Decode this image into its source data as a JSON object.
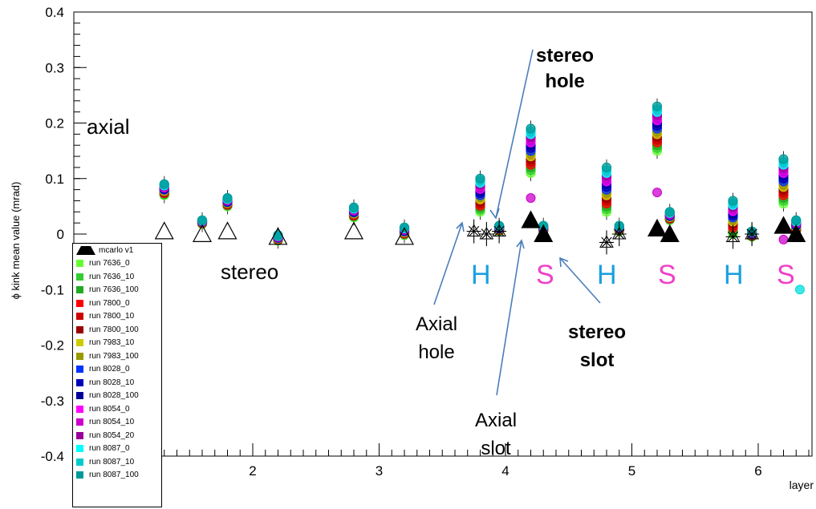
{
  "chart_data": {
    "type": "scatter",
    "title": "",
    "xlabel": "layer",
    "ylabel": "ϕ kink mean value (mrad)",
    "xlim": [
      1,
      6.5
    ],
    "ylim": [
      -0.4,
      0.4
    ],
    "xticks": [
      2,
      3,
      4,
      5,
      6
    ],
    "yticks": [
      -0.4,
      -0.3,
      -0.2,
      -0.1,
      0,
      0.1,
      0.2,
      0.3,
      0.4
    ],
    "grid": false,
    "legend_position": "bottom-left",
    "legend": [
      {
        "name": "mcarlo v1",
        "color": "#000000"
      },
      {
        "name": "run 7636_0",
        "color": "#66ff33"
      },
      {
        "name": "run 7636_10",
        "color": "#33cc33"
      },
      {
        "name": "run 7636_100",
        "color": "#22aa22"
      },
      {
        "name": "run 7800_0",
        "color": "#ff0000"
      },
      {
        "name": "run 7800_10",
        "color": "#cc0000"
      },
      {
        "name": "run 7800_100",
        "color": "#990000"
      },
      {
        "name": "run 7983_10",
        "color": "#cccc00"
      },
      {
        "name": "run 7983_100",
        "color": "#999900"
      },
      {
        "name": "run 8028_0",
        "color": "#0033ff"
      },
      {
        "name": "run 8028_10",
        "color": "#0000bb"
      },
      {
        "name": "run 8028_100",
        "color": "#000099"
      },
      {
        "name": "run 8054_0",
        "color": "#ff00ff"
      },
      {
        "name": "run 8054_10",
        "color": "#cc00cc"
      },
      {
        "name": "run 8054_20",
        "color": "#990099"
      },
      {
        "name": "run 8087_0",
        "color": "#00ffff"
      },
      {
        "name": "run 8087_10",
        "color": "#00cccc"
      },
      {
        "name": "run 8087_100",
        "color": "#009999"
      }
    ],
    "mc_open": [
      {
        "x": 1.3,
        "y": 0.005
      },
      {
        "x": 1.6,
        "y": 0.0
      },
      {
        "x": 1.8,
        "y": 0.005
      },
      {
        "x": 2.2,
        "y": -0.005
      },
      {
        "x": 2.8,
        "y": 0.005
      },
      {
        "x": 3.2,
        "y": -0.005
      }
    ],
    "mc_star": [
      {
        "x": 3.75,
        "y": 0.005
      },
      {
        "x": 3.85,
        "y": 0.0
      },
      {
        "x": 3.95,
        "y": 0.005
      },
      {
        "x": 4.8,
        "y": -0.015
      },
      {
        "x": 4.9,
        "y": 0.0
      },
      {
        "x": 5.8,
        "y": -0.005
      },
      {
        "x": 5.95,
        "y": 0.0
      }
    ],
    "mc_filled": [
      {
        "x": 4.2,
        "y": 0.025
      },
      {
        "x": 4.3,
        "y": 0.0
      },
      {
        "x": 5.2,
        "y": 0.01
      },
      {
        "x": 5.3,
        "y": 0.0
      },
      {
        "x": 6.2,
        "y": 0.015
      },
      {
        "x": 6.3,
        "y": 0.0
      }
    ],
    "data_groups": [
      {
        "x": 1.3,
        "ymin": 0.07,
        "ymax": 0.09
      },
      {
        "x": 1.6,
        "ymin": 0.018,
        "ymax": 0.025
      },
      {
        "x": 1.8,
        "ymin": 0.05,
        "ymax": 0.065
      },
      {
        "x": 2.2,
        "ymin": -0.012,
        "ymax": -0.002
      },
      {
        "x": 2.8,
        "ymin": 0.03,
        "ymax": 0.048
      },
      {
        "x": 3.2,
        "ymin": -0.002,
        "ymax": 0.012
      },
      {
        "x": 3.8,
        "ymin": 0.04,
        "ymax": 0.1
      },
      {
        "x": 3.95,
        "ymin": 0.005,
        "ymax": 0.015
      },
      {
        "x": 4.2,
        "ymin": 0.11,
        "ymax": 0.19
      },
      {
        "x": 4.3,
        "ymin": 0.005,
        "ymax": 0.015
      },
      {
        "x": 4.8,
        "ymin": 0.04,
        "ymax": 0.12
      },
      {
        "x": 4.9,
        "ymin": 0.005,
        "ymax": 0.015
      },
      {
        "x": 5.2,
        "ymin": 0.15,
        "ymax": 0.23
      },
      {
        "x": 5.3,
        "ymin": 0.025,
        "ymax": 0.04
      },
      {
        "x": 5.8,
        "ymin": 0.0,
        "ymax": 0.06
      },
      {
        "x": 5.95,
        "ymin": -0.005,
        "ymax": 0.005
      },
      {
        "x": 6.2,
        "ymin": 0.055,
        "ymax": 0.135
      },
      {
        "x": 6.3,
        "ymin": 0.005,
        "ymax": 0.025
      }
    ],
    "extra_points": [
      {
        "x": 5.2,
        "y": 0.075,
        "color": "#cc00cc"
      },
      {
        "x": 4.2,
        "y": 0.065,
        "color": "#cc00cc"
      },
      {
        "x": 6.2,
        "y": -0.01,
        "color": "#cc00cc"
      },
      {
        "x": 6.33,
        "y": -0.1,
        "color": "#00dddd"
      }
    ],
    "annotations": {
      "axial": "axial",
      "stereo": "stereo",
      "stereo_hole": [
        "stereo",
        "hole"
      ],
      "stereo_slot": [
        "stereo",
        "slot"
      ],
      "axial_hole": [
        "Axial",
        "hole"
      ],
      "axial_slot": [
        "Axial",
        "slot"
      ],
      "layer_markers": [
        "H",
        "S",
        "H",
        "S",
        "H",
        "S"
      ]
    }
  }
}
